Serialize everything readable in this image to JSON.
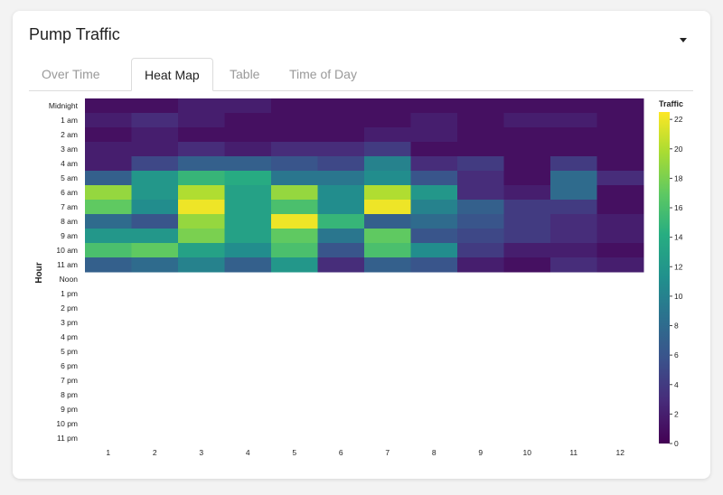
{
  "panel": {
    "title": "Pump Traffic"
  },
  "tabs": [
    {
      "label": "Over Time",
      "active": false
    },
    {
      "label": "Heat Map",
      "active": true
    },
    {
      "label": "Table",
      "active": false
    },
    {
      "label": "Time of Day",
      "active": false
    }
  ],
  "icons": {
    "collapse": "caret-down-icon"
  },
  "chart_data": {
    "type": "heatmap",
    "title": "",
    "xlabel": "",
    "ylabel": "Hour",
    "x_categories": [
      "1",
      "2",
      "3",
      "4",
      "5",
      "6",
      "7",
      "8",
      "9",
      "10",
      "11",
      "12"
    ],
    "y_categories": [
      "Midnight",
      "1 am",
      "2 am",
      "3 am",
      "4 am",
      "5 am",
      "6 am",
      "7 am",
      "8 am",
      "9 am",
      "10 am",
      "11 am",
      "Noon",
      "1 pm",
      "2 pm",
      "3 pm",
      "4 pm",
      "5 pm",
      "6 pm",
      "7 pm",
      "8 pm",
      "9 pm",
      "10 pm",
      "11 pm"
    ],
    "values": [
      [
        1,
        1,
        2,
        2,
        1,
        1,
        1,
        1,
        1,
        1,
        1,
        1
      ],
      [
        2,
        3,
        2,
        1,
        1,
        1,
        1,
        2,
        1,
        2,
        2,
        1
      ],
      [
        1,
        2,
        1,
        1,
        1,
        1,
        2,
        2,
        1,
        1,
        1,
        1
      ],
      [
        2,
        2,
        3,
        2,
        3,
        3,
        4,
        1,
        1,
        1,
        1,
        1
      ],
      [
        2,
        5,
        7,
        7,
        6,
        5,
        10,
        3,
        4,
        1,
        4,
        1
      ],
      [
        7,
        12,
        15,
        14,
        9,
        9,
        11,
        6,
        3,
        1,
        8,
        3
      ],
      [
        19,
        12,
        20,
        13,
        19,
        11,
        20,
        12,
        3,
        2,
        8,
        1
      ],
      [
        17,
        11,
        22,
        13,
        16,
        11,
        22,
        10,
        7,
        4,
        4,
        1
      ],
      [
        8,
        6,
        19,
        13,
        22,
        15,
        7,
        8,
        6,
        4,
        3,
        2
      ],
      [
        12,
        12,
        18,
        13,
        17,
        9,
        17,
        6,
        5,
        4,
        3,
        2
      ],
      [
        16,
        17,
        13,
        11,
        16,
        6,
        16,
        11,
        4,
        2,
        2,
        1
      ],
      [
        7,
        8,
        10,
        7,
        12,
        3,
        7,
        6,
        2,
        1,
        3,
        2
      ],
      [
        null,
        null,
        null,
        null,
        null,
        null,
        null,
        null,
        null,
        null,
        null,
        null
      ],
      [
        null,
        null,
        null,
        null,
        null,
        null,
        null,
        null,
        null,
        null,
        null,
        null
      ],
      [
        null,
        null,
        null,
        null,
        null,
        null,
        null,
        null,
        null,
        null,
        null,
        null
      ],
      [
        null,
        null,
        null,
        null,
        null,
        null,
        null,
        null,
        null,
        null,
        null,
        null
      ],
      [
        null,
        null,
        null,
        null,
        null,
        null,
        null,
        null,
        null,
        null,
        null,
        null
      ],
      [
        null,
        null,
        null,
        null,
        null,
        null,
        null,
        null,
        null,
        null,
        null,
        null
      ],
      [
        null,
        null,
        null,
        null,
        null,
        null,
        null,
        null,
        null,
        null,
        null,
        null
      ],
      [
        null,
        null,
        null,
        null,
        null,
        null,
        null,
        null,
        null,
        null,
        null,
        null
      ],
      [
        null,
        null,
        null,
        null,
        null,
        null,
        null,
        null,
        null,
        null,
        null,
        null
      ],
      [
        null,
        null,
        null,
        null,
        null,
        null,
        null,
        null,
        null,
        null,
        null,
        null
      ],
      [
        null,
        null,
        null,
        null,
        null,
        null,
        null,
        null,
        null,
        null,
        null,
        null
      ],
      [
        null,
        null,
        null,
        null,
        null,
        null,
        null,
        null,
        null,
        null,
        null,
        null
      ]
    ],
    "color_scale": {
      "title": "Traffic",
      "min": 0,
      "max": 22.5,
      "ticks": [
        "0",
        "2",
        "4",
        "6",
        "8",
        "10",
        "12",
        "14",
        "16",
        "18",
        "20",
        "22"
      ],
      "colormap": "viridis"
    },
    "legend_position": "right",
    "grid": false
  }
}
